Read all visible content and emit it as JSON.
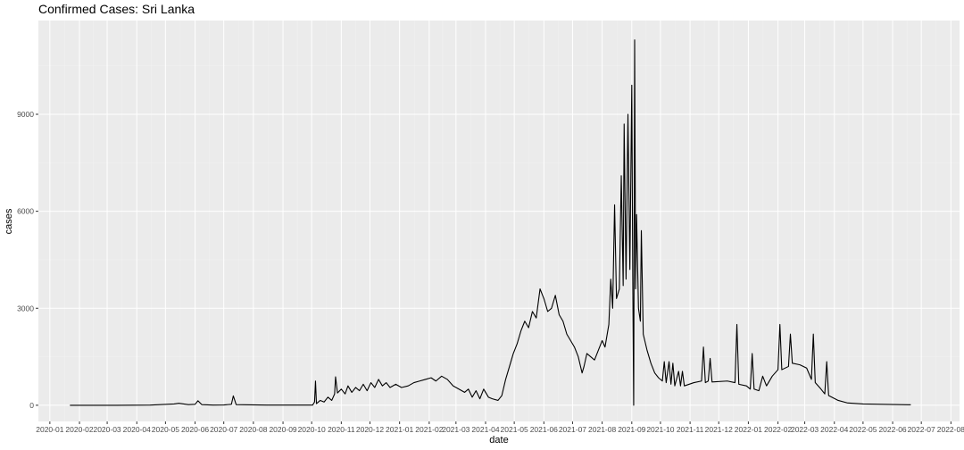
{
  "chart_data": {
    "type": "line",
    "title": "Confirmed Cases: Sri Lanka",
    "xlabel": "date",
    "ylabel": "cases",
    "x_range": [
      "2019-12-20",
      "2022-08-10"
    ],
    "ylim": [
      -500,
      11900
    ],
    "x_ticks": [
      "2020-01",
      "2020-02",
      "2020-03",
      "2020-04",
      "2020-05",
      "2020-06",
      "2020-07",
      "2020-08",
      "2020-09",
      "2020-10",
      "2020-11",
      "2020-12",
      "2021-01",
      "2021-02",
      "2021-03",
      "2021-04",
      "2021-05",
      "2021-06",
      "2021-07",
      "2021-08",
      "2021-09",
      "2021-10",
      "2021-11",
      "2021-12",
      "2022-01",
      "2022-02",
      "2022-03",
      "2022-04",
      "2022-05",
      "2022-06",
      "2022-07",
      "2022-08"
    ],
    "x_tick_labels": [
      "2020-01",
      "2020-02",
      "2020-03",
      "2020-04",
      "2020-05",
      "2020-06",
      "2020-07",
      "2020-08",
      "2020-09",
      "2020-10",
      "2020-11",
      "2020-12",
      "2021-01",
      "2021-02",
      "2021-03",
      "2021-04",
      "2021-05",
      "2021-06",
      "2021-07",
      "2021-08",
      "2021-09",
      "2021-10",
      "2021-11",
      "2021-12",
      "2022-01",
      "2022-02",
      "2022-03",
      "2022-04",
      "2022-05",
      "2022-06",
      "2022-07",
      "2022-08"
    ],
    "y_ticks": [
      0,
      3000,
      6000,
      9000
    ],
    "y_tick_labels": [
      "0",
      "3000",
      "6000",
      "9000"
    ],
    "series": [
      {
        "color": "#000000",
        "points": [
          [
            "2020-01-22",
            0
          ],
          [
            "2020-03-10",
            0
          ],
          [
            "2020-04-15",
            5
          ],
          [
            "2020-05-10",
            40
          ],
          [
            "2020-05-15",
            60
          ],
          [
            "2020-05-25",
            20
          ],
          [
            "2020-06-01",
            30
          ],
          [
            "2020-06-04",
            140
          ],
          [
            "2020-06-08",
            20
          ],
          [
            "2020-06-20",
            5
          ],
          [
            "2020-07-01",
            10
          ],
          [
            "2020-07-09",
            30
          ],
          [
            "2020-07-11",
            290
          ],
          [
            "2020-07-14",
            20
          ],
          [
            "2020-08-15",
            5
          ],
          [
            "2020-09-20",
            5
          ],
          [
            "2020-10-02",
            5
          ],
          [
            "2020-10-04",
            100
          ],
          [
            "2020-10-05",
            750
          ],
          [
            "2020-10-06",
            50
          ],
          [
            "2020-10-10",
            150
          ],
          [
            "2020-10-14",
            100
          ],
          [
            "2020-10-18",
            250
          ],
          [
            "2020-10-22",
            150
          ],
          [
            "2020-10-25",
            350
          ],
          [
            "2020-10-26",
            880
          ],
          [
            "2020-10-28",
            380
          ],
          [
            "2020-11-01",
            500
          ],
          [
            "2020-11-05",
            350
          ],
          [
            "2020-11-08",
            600
          ],
          [
            "2020-11-12",
            400
          ],
          [
            "2020-11-16",
            550
          ],
          [
            "2020-11-20",
            450
          ],
          [
            "2020-11-24",
            650
          ],
          [
            "2020-11-28",
            450
          ],
          [
            "2020-12-02",
            700
          ],
          [
            "2020-12-06",
            550
          ],
          [
            "2020-12-10",
            800
          ],
          [
            "2020-12-14",
            600
          ],
          [
            "2020-12-18",
            700
          ],
          [
            "2020-12-22",
            550
          ],
          [
            "2020-12-28",
            650
          ],
          [
            "2021-01-03",
            550
          ],
          [
            "2021-01-10",
            600
          ],
          [
            "2021-01-16",
            700
          ],
          [
            "2021-01-22",
            750
          ],
          [
            "2021-01-28",
            800
          ],
          [
            "2021-02-03",
            850
          ],
          [
            "2021-02-08",
            750
          ],
          [
            "2021-02-14",
            900
          ],
          [
            "2021-02-20",
            800
          ],
          [
            "2021-02-26",
            600
          ],
          [
            "2021-03-04",
            500
          ],
          [
            "2021-03-10",
            400
          ],
          [
            "2021-03-14",
            500
          ],
          [
            "2021-03-18",
            250
          ],
          [
            "2021-03-22",
            450
          ],
          [
            "2021-03-26",
            200
          ],
          [
            "2021-03-30",
            500
          ],
          [
            "2021-04-04",
            250
          ],
          [
            "2021-04-08",
            200
          ],
          [
            "2021-04-14",
            150
          ],
          [
            "2021-04-18",
            300
          ],
          [
            "2021-04-22",
            800
          ],
          [
            "2021-04-26",
            1200
          ],
          [
            "2021-04-30",
            1600
          ],
          [
            "2021-05-04",
            1900
          ],
          [
            "2021-05-08",
            2300
          ],
          [
            "2021-05-12",
            2600
          ],
          [
            "2021-05-16",
            2400
          ],
          [
            "2021-05-20",
            2900
          ],
          [
            "2021-05-24",
            2700
          ],
          [
            "2021-05-28",
            3600
          ],
          [
            "2021-06-01",
            3300
          ],
          [
            "2021-06-05",
            2900
          ],
          [
            "2021-06-09",
            3000
          ],
          [
            "2021-06-13",
            3400
          ],
          [
            "2021-06-17",
            2800
          ],
          [
            "2021-06-21",
            2600
          ],
          [
            "2021-06-25",
            2200
          ],
          [
            "2021-06-29",
            2000
          ],
          [
            "2021-07-03",
            1800
          ],
          [
            "2021-07-07",
            1500
          ],
          [
            "2021-07-11",
            1000
          ],
          [
            "2021-07-13",
            1200
          ],
          [
            "2021-07-16",
            1600
          ],
          [
            "2021-07-20",
            1500
          ],
          [
            "2021-07-24",
            1400
          ],
          [
            "2021-07-28",
            1700
          ],
          [
            "2021-08-01",
            2000
          ],
          [
            "2021-08-04",
            1800
          ],
          [
            "2021-08-08",
            2500
          ],
          [
            "2021-08-10",
            3900
          ],
          [
            "2021-08-12",
            3000
          ],
          [
            "2021-08-14",
            6200
          ],
          [
            "2021-08-16",
            3300
          ],
          [
            "2021-08-19",
            3600
          ],
          [
            "2021-08-21",
            7100
          ],
          [
            "2021-08-23",
            3700
          ],
          [
            "2021-08-24",
            8700
          ],
          [
            "2021-08-26",
            3900
          ],
          [
            "2021-08-28",
            9000
          ],
          [
            "2021-08-30",
            4200
          ],
          [
            "2021-09-01",
            9900
          ],
          [
            "2021-09-02",
            4000
          ],
          [
            "2021-09-03",
            0
          ],
          [
            "2021-09-04",
            11300
          ],
          [
            "2021-09-05",
            3600
          ],
          [
            "2021-09-06",
            5900
          ],
          [
            "2021-09-08",
            3000
          ],
          [
            "2021-09-10",
            2600
          ],
          [
            "2021-09-11",
            5400
          ],
          [
            "2021-09-13",
            2200
          ],
          [
            "2021-09-17",
            1700
          ],
          [
            "2021-09-21",
            1300
          ],
          [
            "2021-09-25",
            1000
          ],
          [
            "2021-09-29",
            850
          ],
          [
            "2021-10-03",
            750
          ],
          [
            "2021-10-05",
            1350
          ],
          [
            "2021-10-07",
            700
          ],
          [
            "2021-10-10",
            1350
          ],
          [
            "2021-10-12",
            650
          ],
          [
            "2021-10-14",
            1300
          ],
          [
            "2021-10-16",
            600
          ],
          [
            "2021-10-20",
            1050
          ],
          [
            "2021-10-22",
            600
          ],
          [
            "2021-10-24",
            1050
          ],
          [
            "2021-10-26",
            600
          ],
          [
            "2021-11-05",
            700
          ],
          [
            "2021-11-13",
            750
          ],
          [
            "2021-11-15",
            1800
          ],
          [
            "2021-11-17",
            700
          ],
          [
            "2021-11-20",
            750
          ],
          [
            "2021-11-22",
            1450
          ],
          [
            "2021-11-24",
            720
          ],
          [
            "2021-12-10",
            750
          ],
          [
            "2021-12-18",
            700
          ],
          [
            "2021-12-20",
            2500
          ],
          [
            "2021-12-22",
            650
          ],
          [
            "2021-12-30",
            600
          ],
          [
            "2022-01-03",
            500
          ],
          [
            "2022-01-05",
            1600
          ],
          [
            "2022-01-07",
            500
          ],
          [
            "2022-01-12",
            450
          ],
          [
            "2022-01-16",
            900
          ],
          [
            "2022-01-20",
            600
          ],
          [
            "2022-01-26",
            900
          ],
          [
            "2022-02-01",
            1100
          ],
          [
            "2022-02-03",
            2500
          ],
          [
            "2022-02-05",
            1100
          ],
          [
            "2022-02-12",
            1200
          ],
          [
            "2022-02-14",
            2200
          ],
          [
            "2022-02-16",
            1300
          ],
          [
            "2022-02-24",
            1250
          ],
          [
            "2022-03-03",
            1150
          ],
          [
            "2022-03-08",
            800
          ],
          [
            "2022-03-10",
            2200
          ],
          [
            "2022-03-12",
            700
          ],
          [
            "2022-03-18",
            500
          ],
          [
            "2022-03-22",
            350
          ],
          [
            "2022-03-24",
            1350
          ],
          [
            "2022-03-26",
            300
          ],
          [
            "2022-04-05",
            150
          ],
          [
            "2022-04-15",
            70
          ],
          [
            "2022-05-01",
            40
          ],
          [
            "2022-05-20",
            30
          ],
          [
            "2022-06-10",
            20
          ],
          [
            "2022-06-20",
            15
          ]
        ]
      }
    ]
  }
}
